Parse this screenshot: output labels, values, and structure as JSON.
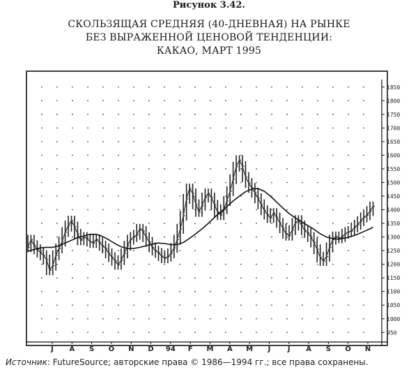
{
  "figure_label": "Рисунок 3.42.",
  "title_lines": [
    "СКОЛЬЗЯЩАЯ СРЕДНЯЯ (40-ДНЕВНАЯ) НА РЫНКЕ",
    "БЕЗ ВЫРАЖЕННОЙ ЦЕНОВОЙ ТЕНДЕНЦИИ:",
    "КАКАО, МАРТ 1995"
  ],
  "source": {
    "label": "Источник",
    "text": ": FutureSource; авторские права © 1986—1994 гг.; все права сохранены."
  },
  "chart_data": {
    "type": "line",
    "title": "СКОЛЬЗЯЩАЯ СРЕДНЯЯ (40-ДНЕВНАЯ) НА РЫНКЕ БЕЗ ВЫРАЖЕННОЙ ЦЕНОВОЙ ТЕНДЕНЦИИ: КАКАО, МАРТ 1995",
    "x_labels": [
      "J",
      "A",
      "S",
      "O",
      "N",
      "D",
      "94",
      "F",
      "M",
      "A",
      "M",
      "J",
      "J",
      "A",
      "S",
      "O",
      "N"
    ],
    "y_ticks": [
      1850,
      1800,
      1750,
      1700,
      1650,
      1600,
      1550,
      1500,
      1450,
      1400,
      1350,
      1300,
      1250,
      1200,
      1150,
      1100,
      1050,
      1000,
      950
    ],
    "y_tick_labels": [
      "1850",
      "1800",
      "1750",
      "1700",
      "1650",
      "1600",
      "1550",
      "1500",
      "1450",
      "1400",
      "1350",
      "1300",
      "1250",
      "1200",
      "1150",
      "1100",
      "1050",
      "1000",
      "950"
    ],
    "ylim": [
      920,
      1875
    ],
    "grid": true,
    "series": [
      {
        "kind": "price_bars",
        "points": [
          [
            0.0,
            1262
          ],
          [
            0.5,
            1290
          ],
          [
            1.0,
            1270
          ],
          [
            1.5,
            1255
          ],
          [
            2.0,
            1243
          ],
          [
            2.5,
            1233
          ],
          [
            3.0,
            1217
          ],
          [
            3.5,
            1178
          ],
          [
            4.0,
            1195
          ],
          [
            4.5,
            1233
          ],
          [
            5.0,
            1258
          ],
          [
            5.5,
            1283
          ],
          [
            6.0,
            1318
          ],
          [
            6.5,
            1342
          ],
          [
            7.0,
            1360
          ],
          [
            7.5,
            1338
          ],
          [
            8.0,
            1312
          ],
          [
            8.5,
            1288
          ],
          [
            9.0,
            1300
          ],
          [
            9.5,
            1294
          ],
          [
            10.0,
            1283
          ],
          [
            10.5,
            1278
          ],
          [
            11.0,
            1292
          ],
          [
            11.5,
            1280
          ],
          [
            12.0,
            1268
          ],
          [
            12.5,
            1258
          ],
          [
            13.0,
            1240
          ],
          [
            13.5,
            1226
          ],
          [
            14.0,
            1213
          ],
          [
            14.5,
            1198
          ],
          [
            15.0,
            1215
          ],
          [
            15.5,
            1240
          ],
          [
            16.0,
            1268
          ],
          [
            16.5,
            1290
          ],
          [
            17.0,
            1300
          ],
          [
            17.5,
            1308
          ],
          [
            18.0,
            1330
          ],
          [
            18.5,
            1322
          ],
          [
            19.0,
            1300
          ],
          [
            19.5,
            1282
          ],
          [
            20.0,
            1262
          ],
          [
            20.5,
            1250
          ],
          [
            21.0,
            1242
          ],
          [
            21.5,
            1230
          ],
          [
            22.0,
            1222
          ],
          [
            22.5,
            1228
          ],
          [
            23.0,
            1240
          ],
          [
            23.5,
            1260
          ],
          [
            24.0,
            1290
          ],
          [
            24.5,
            1330
          ],
          [
            25.0,
            1378
          ],
          [
            25.5,
            1440
          ],
          [
            26.0,
            1478
          ],
          [
            26.5,
            1460
          ],
          [
            27.0,
            1420
          ],
          [
            27.5,
            1392
          ],
          [
            28.0,
            1415
          ],
          [
            28.5,
            1445
          ],
          [
            29.0,
            1460
          ],
          [
            29.5,
            1445
          ],
          [
            30.0,
            1418
          ],
          [
            30.5,
            1392
          ],
          [
            31.0,
            1380
          ],
          [
            31.5,
            1402
          ],
          [
            32.0,
            1432
          ],
          [
            32.5,
            1468
          ],
          [
            33.0,
            1512
          ],
          [
            33.5,
            1558
          ],
          [
            34.0,
            1582
          ],
          [
            34.5,
            1560
          ],
          [
            35.0,
            1520
          ],
          [
            35.5,
            1498
          ],
          [
            36.0,
            1480
          ],
          [
            36.5,
            1462
          ],
          [
            37.0,
            1442
          ],
          [
            37.5,
            1420
          ],
          [
            38.0,
            1398
          ],
          [
            38.5,
            1382
          ],
          [
            39.0,
            1370
          ],
          [
            39.5,
            1388
          ],
          [
            40.0,
            1372
          ],
          [
            40.5,
            1352
          ],
          [
            41.0,
            1332
          ],
          [
            41.5,
            1312
          ],
          [
            42.0,
            1305
          ],
          [
            42.5,
            1325
          ],
          [
            43.0,
            1352
          ],
          [
            43.5,
            1362
          ],
          [
            44.0,
            1342
          ],
          [
            44.5,
            1325
          ],
          [
            45.0,
            1315
          ],
          [
            45.5,
            1300
          ],
          [
            46.0,
            1280
          ],
          [
            46.5,
            1255
          ],
          [
            47.0,
            1225
          ],
          [
            47.5,
            1212
          ],
          [
            48.0,
            1228
          ],
          [
            48.5,
            1262
          ],
          [
            49.0,
            1290
          ],
          [
            49.5,
            1302
          ],
          [
            50.0,
            1295
          ],
          [
            50.5,
            1300
          ],
          [
            51.0,
            1312
          ],
          [
            51.5,
            1318
          ],
          [
            52.0,
            1322
          ],
          [
            52.5,
            1335
          ],
          [
            53.0,
            1345
          ],
          [
            53.5,
            1358
          ],
          [
            54.0,
            1372
          ],
          [
            54.5,
            1380
          ],
          [
            55.0,
            1395
          ],
          [
            55.5,
            1412
          ]
        ]
      },
      {
        "kind": "moving_average_40",
        "points": [
          [
            0.0,
            1248
          ],
          [
            1.0,
            1254
          ],
          [
            2.0,
            1260
          ],
          [
            3.0,
            1262
          ],
          [
            4.0,
            1262
          ],
          [
            5.0,
            1268
          ],
          [
            6.0,
            1278
          ],
          [
            7.0,
            1288
          ],
          [
            8.0,
            1298
          ],
          [
            9.0,
            1304
          ],
          [
            10.0,
            1310
          ],
          [
            11.0,
            1310
          ],
          [
            12.0,
            1302
          ],
          [
            13.0,
            1290
          ],
          [
            14.0,
            1276
          ],
          [
            15.0,
            1264
          ],
          [
            16.0,
            1258
          ],
          [
            17.0,
            1258
          ],
          [
            18.0,
            1262
          ],
          [
            19.0,
            1268
          ],
          [
            20.0,
            1274
          ],
          [
            21.0,
            1278
          ],
          [
            22.0,
            1276
          ],
          [
            23.0,
            1272
          ],
          [
            24.0,
            1272
          ],
          [
            25.0,
            1280
          ],
          [
            26.0,
            1295
          ],
          [
            27.0,
            1312
          ],
          [
            28.0,
            1330
          ],
          [
            29.0,
            1350
          ],
          [
            30.0,
            1372
          ],
          [
            31.0,
            1392
          ],
          [
            32.0,
            1412
          ],
          [
            33.0,
            1432
          ],
          [
            34.0,
            1450
          ],
          [
            35.0,
            1466
          ],
          [
            36.0,
            1476
          ],
          [
            37.0,
            1478
          ],
          [
            38.0,
            1468
          ],
          [
            39.0,
            1450
          ],
          [
            40.0,
            1428
          ],
          [
            41.0,
            1406
          ],
          [
            42.0,
            1386
          ],
          [
            43.0,
            1370
          ],
          [
            44.0,
            1356
          ],
          [
            45.0,
            1342
          ],
          [
            46.0,
            1328
          ],
          [
            47.0,
            1312
          ],
          [
            48.0,
            1300
          ],
          [
            49.0,
            1294
          ],
          [
            50.0,
            1292
          ],
          [
            51.0,
            1296
          ],
          [
            52.0,
            1302
          ],
          [
            53.0,
            1310
          ],
          [
            54.0,
            1320
          ],
          [
            55.0,
            1330
          ],
          [
            55.5,
            1336
          ]
        ]
      }
    ],
    "x_range": [
      0,
      56
    ]
  }
}
